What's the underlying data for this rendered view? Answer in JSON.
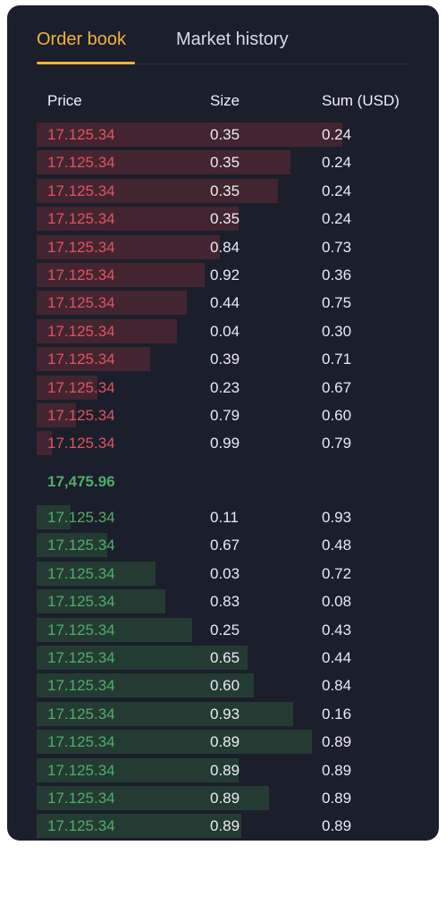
{
  "tabs": {
    "active_label": "Order book",
    "inactive_label": "Market history"
  },
  "columns": {
    "price": "Price",
    "size": "Size",
    "sum": "Sum (USD)"
  },
  "colors": {
    "accent": "#f4b23c",
    "ask": "#e2535e",
    "bid": "#4fae68",
    "background": "#1b1e2b"
  },
  "mid_price": "17,475.96",
  "asks": [
    {
      "price": "17.125.34",
      "size": "0.35",
      "sum": "0.24",
      "depth": 1.0
    },
    {
      "price": "17.125.34",
      "size": "0.35",
      "sum": "0.24",
      "depth": 0.83
    },
    {
      "price": "17.125.34",
      "size": "0.35",
      "sum": "0.24",
      "depth": 0.79
    },
    {
      "price": "17.125.34",
      "size": "0.35",
      "sum": "0.24",
      "depth": 0.66
    },
    {
      "price": "17.125.34",
      "size": "0.84",
      "sum": "0.73",
      "depth": 0.6
    },
    {
      "price": "17.125.34",
      "size": "0.92",
      "sum": "0.36",
      "depth": 0.55
    },
    {
      "price": "17.125.34",
      "size": "0.44",
      "sum": "0.75",
      "depth": 0.49
    },
    {
      "price": "17.125.34",
      "size": "0.04",
      "sum": "0.30",
      "depth": 0.46
    },
    {
      "price": "17.125.34",
      "size": "0.39",
      "sum": "0.71",
      "depth": 0.37
    },
    {
      "price": "17.125.34",
      "size": "0.23",
      "sum": "0.67",
      "depth": 0.2
    },
    {
      "price": "17.125.34",
      "size": "0.79",
      "sum": "0.60",
      "depth": 0.13
    },
    {
      "price": "17.125.34",
      "size": "0.99",
      "sum": "0.79",
      "depth": 0.05
    }
  ],
  "bids": [
    {
      "price": "17.125.34",
      "size": "0.11",
      "sum": "0.93",
      "depth": 0.11
    },
    {
      "price": "17.125.34",
      "size": "0.67",
      "sum": "0.48",
      "depth": 0.23
    },
    {
      "price": "17.125.34",
      "size": "0.03",
      "sum": "0.72",
      "depth": 0.39
    },
    {
      "price": "17.125.34",
      "size": "0.83",
      "sum": "0.08",
      "depth": 0.42
    },
    {
      "price": "17.125.34",
      "size": "0.25",
      "sum": "0.43",
      "depth": 0.51
    },
    {
      "price": "17.125.34",
      "size": "0.65",
      "sum": "0.44",
      "depth": 0.69
    },
    {
      "price": "17.125.34",
      "size": "0.60",
      "sum": "0.84",
      "depth": 0.71
    },
    {
      "price": "17.125.34",
      "size": "0.93",
      "sum": "0.16",
      "depth": 0.84
    },
    {
      "price": "17.125.34",
      "size": "0.89",
      "sum": "0.89",
      "depth": 0.9
    },
    {
      "price": "17.125.34",
      "size": "0.89",
      "sum": "0.89",
      "depth": 0.66
    },
    {
      "price": "17.125.34",
      "size": "0.89",
      "sum": "0.89",
      "depth": 0.76
    },
    {
      "price": "17.125.34",
      "size": "0.89",
      "sum": "0.89",
      "depth": 0.67
    }
  ]
}
